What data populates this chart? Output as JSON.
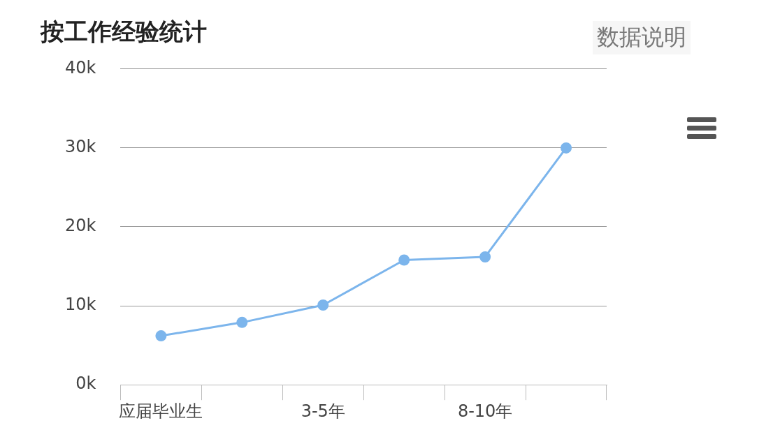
{
  "chart_data": {
    "type": "line",
    "title": "按工作经验统计",
    "annotations": [
      "数据说明"
    ],
    "categories": [
      "应届毕业生",
      null,
      "3-5年",
      null,
      "8-10年",
      null
    ],
    "series": [
      {
        "color": "#7cb5ec",
        "values": [
          6200,
          7900,
          10100,
          15800,
          16200,
          30000
        ]
      }
    ],
    "ylim": [
      0,
      40000
    ],
    "yticks": [
      {
        "value": 0,
        "label": "0k"
      },
      {
        "value": 10000,
        "label": "10k"
      },
      {
        "value": 20000,
        "label": "20k"
      },
      {
        "value": 30000,
        "label": "30k"
      },
      {
        "value": 40000,
        "label": "40k"
      }
    ],
    "grid": "y",
    "legend": false,
    "marker": "circle",
    "line_style": "solid"
  }
}
